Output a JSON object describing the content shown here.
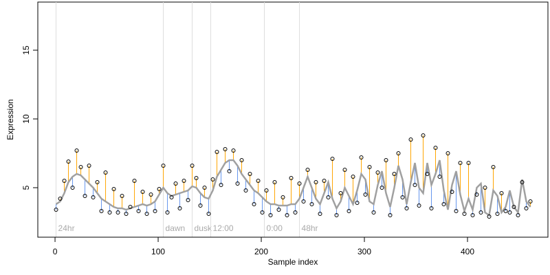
{
  "chart_data": {
    "type": "scatter",
    "x_label": "Sample index",
    "y_label": "Expression",
    "xlim": [
      -16.7,
      478
    ],
    "ylim": [
      1.4,
      18.5
    ],
    "xticks": [
      0,
      100,
      200,
      300,
      400
    ],
    "yticks": [
      5,
      10,
      15
    ],
    "fit_color": "#a0a0a0",
    "above_color": "#ffa500",
    "below_color": "#6495ed",
    "point_color": "#000000",
    "annotation_color": "#dddddd",
    "annotations": [
      {
        "x": 1,
        "label": "24hr"
      },
      {
        "x": 105,
        "label": "dawn"
      },
      {
        "x": 133,
        "label": "dusk"
      },
      {
        "x": 151,
        "label": "12:00"
      },
      {
        "x": 203,
        "label": "0:00"
      },
      {
        "x": 237,
        "label": "48hr"
      }
    ],
    "x": [
      1,
      5,
      9,
      13,
      17,
      21,
      25,
      29,
      33,
      37,
      41,
      45,
      49,
      53,
      57,
      61,
      65,
      69,
      73,
      77,
      81,
      85,
      89,
      93,
      97,
      101,
      105,
      109,
      113,
      117,
      121,
      125,
      129,
      133,
      137,
      141,
      145,
      149,
      153,
      157,
      161,
      165,
      169,
      173,
      177,
      181,
      185,
      189,
      193,
      197,
      201,
      205,
      209,
      213,
      217,
      221,
      225,
      229,
      233,
      237,
      241,
      245,
      249,
      253,
      257,
      261,
      265,
      269,
      273,
      277,
      281,
      285,
      289,
      293,
      297,
      301,
      305,
      309,
      313,
      317,
      321,
      325,
      329,
      333,
      337,
      341,
      345,
      349,
      353,
      357,
      361,
      365,
      369,
      373,
      377,
      381,
      385,
      389,
      393,
      397,
      401,
      405,
      409,
      413,
      417,
      421,
      425,
      429,
      433,
      437,
      441,
      445,
      449,
      453,
      457,
      461
    ],
    "values": [
      3.4,
      4.2,
      5.5,
      6.9,
      5.0,
      7.7,
      6.5,
      4.4,
      6.6,
      4.3,
      5.4,
      3.3,
      6.1,
      3.2,
      4.9,
      3.2,
      4.4,
      3.1,
      3.6,
      5.5,
      3.3,
      4.7,
      3.1,
      4.5,
      3.3,
      4.9,
      6.6,
      3.2,
      4.3,
      5.3,
      3.5,
      5.5,
      4.1,
      6.6,
      5.7,
      3.7,
      5.0,
      3.1,
      5.6,
      7.6,
      5.2,
      7.8,
      6.2,
      7.7,
      5.3,
      7.0,
      4.8,
      6.0,
      3.8,
      5.5,
      3.2,
      4.8,
      3.0,
      5.4,
      3.4,
      4.3,
      3.0,
      5.7,
      3.2,
      5.3,
      4.0,
      6.3,
      3.8,
      5.4,
      3.1,
      5.5,
      4.3,
      7.1,
      3.0,
      4.6,
      6.3,
      3.3,
      5.8,
      3.9,
      7.2,
      4.5,
      6.5,
      3.2,
      6.1,
      5.0,
      7.0,
      3.0,
      6.0,
      7.5,
      4.3,
      3.5,
      8.5,
      5.2,
      3.7,
      8.8,
      6.0,
      3.5,
      7.9,
      5.8,
      3.8,
      7.5,
      4.7,
      3.3,
      6.8,
      3.1,
      6.8,
      3.0,
      4.5,
      3.2,
      5.0,
      2.9,
      6.5,
      3.1,
      4.6,
      3.3,
      3.2,
      3.6,
      3.0,
      5.4,
      3.5,
      4.0
    ],
    "fit": [
      3.8,
      4.0,
      4.6,
      5.4,
      5.8,
      6.0,
      5.9,
      5.6,
      5.3,
      5.0,
      4.6,
      4.2,
      4.0,
      3.8,
      3.6,
      3.5,
      3.5,
      3.4,
      3.5,
      3.6,
      3.7,
      3.8,
      3.7,
      3.8,
      4.0,
      4.5,
      5.0,
      4.6,
      4.4,
      4.5,
      4.6,
      4.7,
      4.8,
      5.1,
      5.0,
      4.6,
      4.3,
      4.2,
      4.8,
      5.8,
      6.3,
      6.8,
      7.0,
      7.0,
      6.6,
      6.0,
      5.6,
      5.2,
      4.8,
      4.6,
      4.3,
      4.0,
      3.8,
      3.8,
      3.7,
      3.7,
      3.7,
      3.8,
      3.8,
      4.2,
      5.0,
      5.8,
      5.0,
      4.2,
      3.8,
      4.6,
      5.4,
      4.2,
      3.5,
      4.0,
      5.0,
      4.4,
      3.8,
      4.8,
      6.0,
      5.6,
      4.0,
      3.8,
      5.2,
      6.2,
      4.6,
      3.6,
      5.0,
      6.6,
      5.6,
      3.8,
      5.4,
      6.8,
      5.0,
      4.6,
      6.8,
      5.2,
      6.0,
      7.0,
      4.8,
      3.4,
      5.2,
      6.2,
      4.5,
      3.3,
      4.2,
      3.4,
      5.0,
      5.3,
      3.2,
      3.0,
      4.8,
      4.4,
      3.2,
      3.6,
      4.8,
      3.6,
      3.2,
      5.6,
      4.0,
      3.6
    ]
  }
}
